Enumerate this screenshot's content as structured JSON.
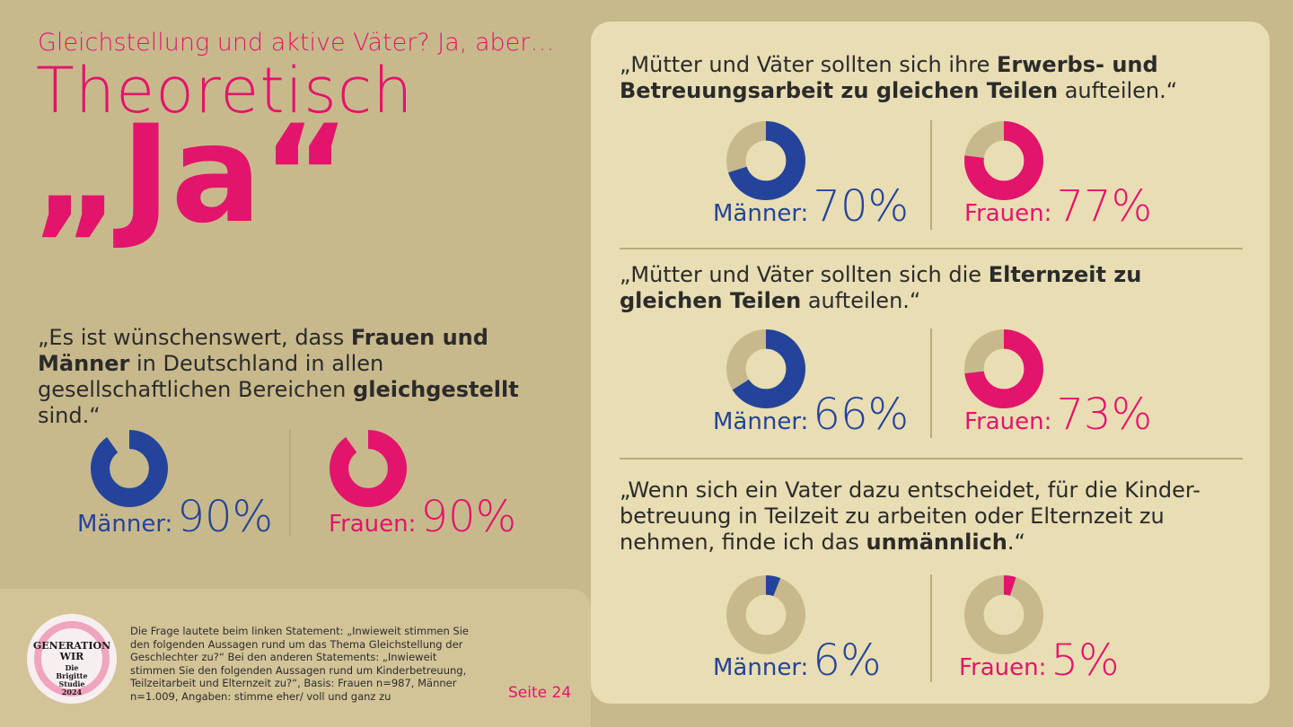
{
  "header": {
    "subtitle": "Gleichstellung und aktive Väter? Ja, aber…",
    "title": "Theoretisch",
    "big": "„Ja“"
  },
  "colors": {
    "men": "#24439a",
    "women": "#e2146c",
    "track": "#c8b98c",
    "accent": "#e2146c"
  },
  "statements": [
    {
      "id": "gleichgestellt",
      "parts": [
        {
          "t": "„Es ist wünschenswert, dass ",
          "b": false
        },
        {
          "t": "Frauen und Männer",
          "b": true
        },
        {
          "t": " in Deutschland in allen gesellschaftlichen Bereichen ",
          "b": false
        },
        {
          "t": "gleichgestellt",
          "b": true
        },
        {
          "t": " sind.“",
          "b": false
        }
      ],
      "men_label": "Männer:",
      "men_value": "90%",
      "women_label": "Frauen:",
      "women_value": "90%"
    },
    {
      "id": "erwerbsarbeit",
      "parts": [
        {
          "t": "„Mütter und Väter sollten sich ihre ",
          "b": false
        },
        {
          "t": "Erwerbs- und Betreuungsarbeit zu gleichen Teilen",
          "b": true
        },
        {
          "t": " aufteilen.“",
          "b": false
        }
      ],
      "men_label": "Männer:",
      "men_value": "70%",
      "women_label": "Frauen:",
      "women_value": "77%"
    },
    {
      "id": "elternzeit",
      "parts": [
        {
          "t": "„Mütter und Väter sollten sich die ",
          "b": false
        },
        {
          "t": "Elternzeit zu gleichen Teilen",
          "b": true
        },
        {
          "t": " aufteilen.“",
          "b": false
        }
      ],
      "men_label": "Männer:",
      "men_value": "66%",
      "women_label": "Frauen:",
      "women_value": "73%"
    },
    {
      "id": "unmaennlich",
      "parts": [
        {
          "t": "„Wenn sich ein Vater dazu entscheidet, für die Kinder-betreuung in Teilzeit zu arbeiten oder Elternzeit zu nehmen, finde ich das ",
          "b": false
        },
        {
          "t": "unmännlich",
          "b": true
        },
        {
          "t": ".“",
          "b": false
        }
      ],
      "men_label": "Männer:",
      "men_value": "6%",
      "women_label": "Frauen:",
      "women_value": "5%"
    }
  ],
  "chart_data": {
    "type": "pie",
    "variant": "donut",
    "series": [
      {
        "name": "Männer",
        "values": [
          90,
          70,
          66,
          6
        ]
      },
      {
        "name": "Frauen",
        "values": [
          90,
          77,
          73,
          5
        ]
      }
    ],
    "unit": "%"
  },
  "footer": {
    "logo_line1": "GENERATION",
    "logo_line2": "WIR",
    "logo_line3": "Die",
    "logo_line4": "Brigitte",
    "logo_line5": "Studie",
    "logo_line6": "2024",
    "note": "Die Frage lautete beim linken Statement: „Inwieweit stimmen Sie den folgenden Aussagen rund um das Thema Gleichstellung der Geschlechter zu?“ Bei den anderen Statements: „Inwieweit stimmen Sie den folgenden Aussagen rund um Kinderbetreuung, Teilzeitarbeit und Elternzeit zu?“, Basis: Frauen n=987, Männer n=1.009, Angaben: stimme eher/ voll und ganz zu",
    "page": "Seite 24"
  }
}
